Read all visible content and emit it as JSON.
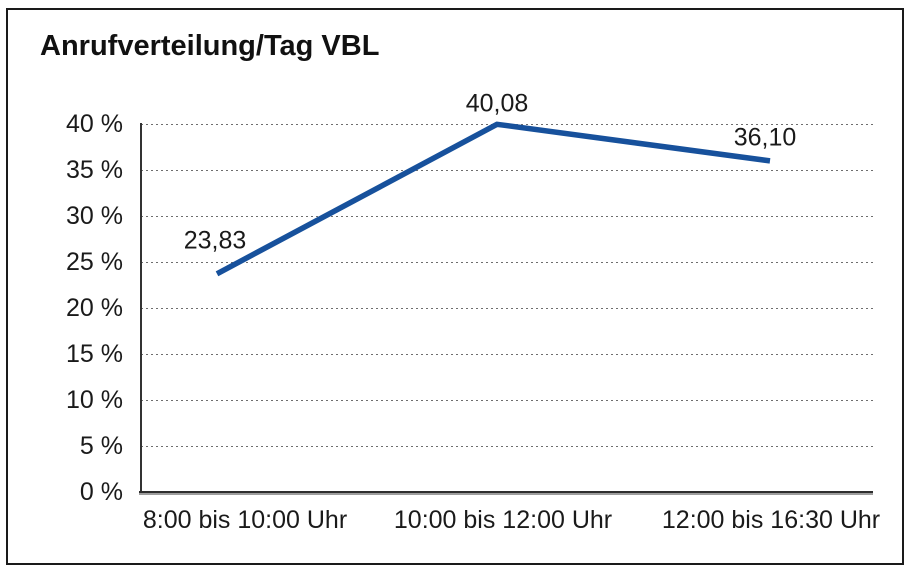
{
  "window": {
    "background_color": "#ffffff",
    "frame_border_color": "#1a1a1a"
  },
  "chart_data": {
    "type": "line",
    "title": "Anrufverteilung/Tag VBL",
    "categories": [
      "8:00 bis 10:00 Uhr",
      "10:00 bis 12:00 Uhr",
      "12:00 bis 16:30 Uhr"
    ],
    "values": [
      23.83,
      40.08,
      36.1
    ],
    "value_labels": [
      "23,83",
      "40,08",
      "36,10"
    ],
    "y_ticks": [
      0,
      5,
      10,
      15,
      20,
      25,
      30,
      35,
      40
    ],
    "y_tick_labels": [
      "0 %",
      "5 %",
      "10 %",
      "15 %",
      "20 %",
      "25 %",
      "30 %",
      "35 %",
      "40 %"
    ],
    "ylim": [
      0,
      40
    ],
    "xlabel": "",
    "ylabel": "",
    "grid": "horizontal-dotted",
    "legend_position": "none",
    "line_color": "#17519C",
    "axis_color": "#333333",
    "text_color": "#1a1a1a"
  }
}
